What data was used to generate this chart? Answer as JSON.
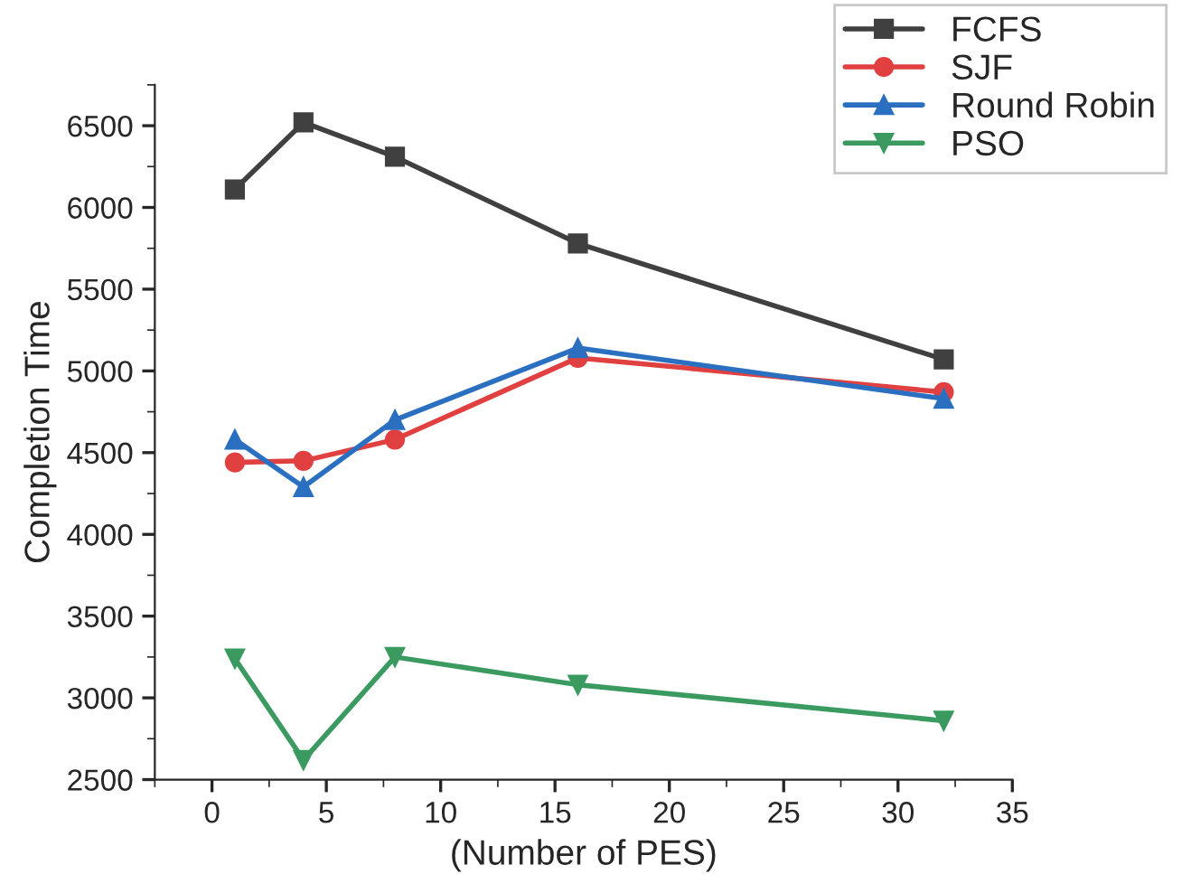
{
  "chart_data": {
    "type": "line",
    "xlabel": "(Number of PES)",
    "ylabel": "Completion Time",
    "x": [
      1,
      4,
      8,
      16,
      32
    ],
    "series": [
      {
        "name": "FCFS",
        "color": "#404040",
        "marker": "square",
        "values": [
          6110,
          6520,
          6310,
          5780,
          5070
        ]
      },
      {
        "name": "SJF",
        "color": "#e04040",
        "marker": "circle",
        "values": [
          4440,
          4450,
          4580,
          5080,
          4870
        ]
      },
      {
        "name": "Round Robin",
        "color": "#2a6fc0",
        "marker": "triangle",
        "values": [
          4580,
          4290,
          4700,
          5140,
          4830
        ]
      },
      {
        "name": "PSO",
        "color": "#3a9a60",
        "marker": "triangle_down",
        "values": [
          3240,
          2620,
          3250,
          3080,
          2860
        ]
      }
    ],
    "xlim": [
      -2.5,
      35
    ],
    "xticks": [
      0,
      5,
      10,
      15,
      20,
      25,
      30,
      35
    ],
    "ylim": [
      2500,
      6750
    ],
    "yticks": [
      2500,
      3000,
      3500,
      4000,
      4500,
      5000,
      5500,
      6000,
      6500
    ],
    "grid": false,
    "legend": "top right",
    "line_style": "solid"
  }
}
